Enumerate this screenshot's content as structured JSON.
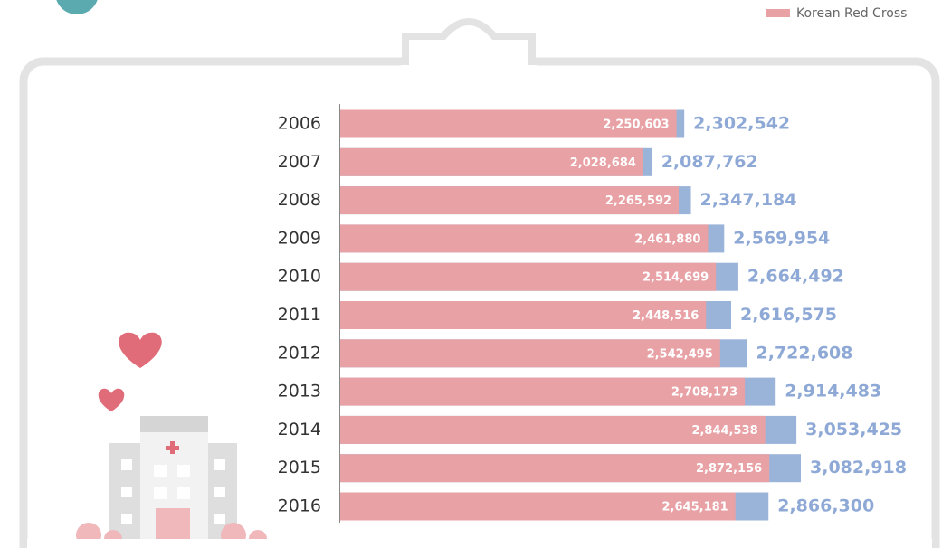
{
  "chart_data": {
    "type": "bar",
    "orientation": "horizontal",
    "categories": [
      "2006",
      "2007",
      "2008",
      "2009",
      "2010",
      "2011",
      "2012",
      "2013",
      "2014",
      "2015",
      "2016"
    ],
    "series": [
      {
        "name": "Korean Red Cross",
        "color": "#e8a2a6",
        "values": [
          2250603,
          2028684,
          2265592,
          2461880,
          2514699,
          2448516,
          2542495,
          2708173,
          2844538,
          2872156,
          2645181
        ],
        "value_labels": [
          "2,250,603",
          "2,028,684",
          "2,265,592",
          "2,461,880",
          "2,514,699",
          "2,448,516",
          "2,542,495",
          "2,708,173",
          "2,844,538",
          "2,872,156",
          "2,645,181"
        ]
      }
    ],
    "totals": {
      "color": "#9ab3d8",
      "values": [
        2302542,
        2087762,
        2347184,
        2569954,
        2664492,
        2616575,
        2722608,
        2914483,
        3053425,
        3082918,
        2866300
      ],
      "value_labels": [
        "2,302,542",
        "2,087,762",
        "2,347,184",
        "2,569,954",
        "2,664,492",
        "2,616,575",
        "2,722,608",
        "2,914,483",
        "3,053,425",
        "3,082,918",
        "2,866,300"
      ]
    }
  }
}
